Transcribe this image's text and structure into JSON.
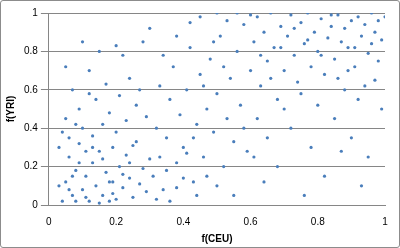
{
  "chart_data": {
    "type": "scatter",
    "xlabel": "f(CEU)",
    "ylabel": "f(YRI)",
    "color": "#4a7ebb",
    "marker": "circle",
    "grid": true,
    "xlim": [
      0,
      1
    ],
    "xticks": [
      0,
      0.2,
      0.4,
      0.6,
      0.8,
      1
    ],
    "ylim": [
      0,
      1
    ],
    "yticks": [
      0,
      0.2,
      0.4,
      0.6,
      0.8,
      1
    ],
    "x": [
      0.04,
      0.05,
      0.06,
      0.07,
      0.08,
      0.09,
      0.1,
      0.11,
      0.12,
      0.13,
      0.14,
      0.15,
      0.16,
      0.17,
      0.18,
      0.19,
      0.2,
      0.21,
      0.22,
      0.23,
      0.24,
      0.25,
      0.26,
      0.27,
      0.28,
      0.29,
      0.3,
      0.04,
      0.05,
      0.06,
      0.07,
      0.08,
      0.09,
      0.1,
      0.11,
      0.12,
      0.13,
      0.14,
      0.15,
      0.16,
      0.17,
      0.18,
      0.19,
      0.2,
      0.21,
      0.22,
      0.23,
      0.24,
      0.25,
      0.26,
      0.31,
      0.32,
      0.33,
      0.34,
      0.35,
      0.36,
      0.37,
      0.38,
      0.39,
      0.4,
      0.41,
      0.42,
      0.43,
      0.44,
      0.45,
      0.46,
      0.47,
      0.48,
      0.49,
      0.5,
      0.51,
      0.52,
      0.53,
      0.54,
      0.55,
      0.56,
      0.57,
      0.58,
      0.59,
      0.6,
      0.32,
      0.35,
      0.38,
      0.41,
      0.44,
      0.47,
      0.5,
      0.28,
      0.3,
      0.34,
      0.61,
      0.62,
      0.63,
      0.64,
      0.65,
      0.66,
      0.67,
      0.68,
      0.69,
      0.7,
      0.71,
      0.72,
      0.73,
      0.74,
      0.75,
      0.76,
      0.77,
      0.78,
      0.79,
      0.8,
      0.81,
      0.82,
      0.83,
      0.84,
      0.85,
      0.86,
      0.87,
      0.88,
      0.89,
      0.9,
      0.91,
      0.92,
      0.93,
      0.94,
      0.95,
      0.96,
      0.97,
      0.98,
      0.99,
      1,
      0.62,
      0.65,
      0.68,
      0.7,
      0.72,
      0.75,
      0.78,
      0.8,
      0.82,
      0.85,
      0.88,
      0.9,
      0.92,
      0.95,
      0.97,
      0.99,
      0.93,
      0.87,
      0.76,
      0.64,
      0.45,
      0.5,
      0.53,
      0.56,
      0.6,
      0.42,
      0.38,
      0.2,
      0.15,
      0.1,
      0.05,
      0.03,
      0.03,
      0.08,
      0.12,
      0.27,
      0.29,
      0.33,
      0.36,
      0.4,
      0.43,
      0.46,
      0.49,
      0.52,
      0.55,
      0.58,
      0.61,
      0.63,
      0.66,
      0.69,
      0.73,
      0.77,
      0.81,
      0.84,
      0.86,
      0.89,
      0.91,
      0.94,
      0.96,
      0.98,
      0.07,
      0.09,
      0.11,
      0.13,
      0.16,
      0.18,
      0.22,
      0.24,
      0.06,
      0.19
    ],
    "values": [
      0.02,
      0.12,
      0.25,
      0.05,
      0.18,
      0.32,
      0.08,
      0.15,
      0.02,
      0.22,
      0.1,
      0.28,
      0.05,
      0.17,
      0.12,
      0.3,
      0.03,
      0.2,
      0.09,
      0.26,
      0.14,
      0.04,
      0.33,
      0.11,
      0.19,
      0.07,
      0.24,
      0.38,
      0.45,
      0.08,
      0.6,
      0.02,
      0.5,
      0.4,
      0.28,
      0.7,
      0.36,
      0.55,
      0.01,
      0.42,
      0.63,
      0.48,
      0.06,
      0.38,
      0.57,
      0.78,
      0.44,
      0.66,
      0.31,
      0.52,
      0.15,
      0.4,
      0.62,
      0.08,
      0.35,
      0.55,
      0.72,
      0.22,
      0.47,
      0.3,
      0.6,
      0.82,
      0.12,
      0.42,
      0.68,
      0.25,
      0.5,
      0.76,
      0.38,
      0.58,
      0.88,
      0.2,
      0.45,
      0.66,
      0.33,
      0.8,
      0.52,
      0.94,
      0.28,
      0.7,
      0.03,
      0.18,
      0.09,
      0.27,
      0.05,
      0.15,
      0.1,
      0.85,
      0.92,
      0.78,
      0.85,
      0.98,
      0.62,
      0.9,
      0.75,
      1,
      0.82,
      0.55,
      0.93,
      0.7,
      0.88,
      0.99,
      0.78,
      0.64,
      0.95,
      0.84,
      1,
      0.72,
      0.9,
      0.8,
      0.97,
      0.68,
      0.87,
      0.93,
      0.76,
      0.99,
      0.85,
      0.92,
      0.7,
      0.96,
      0.82,
      0.98,
      0.88,
      0.94,
      0.79,
      1,
      0.9,
      0.96,
      0.86,
      0.98,
      0.45,
      0.35,
      0.2,
      0.5,
      0.4,
      0.58,
      0.3,
      0.52,
      0.15,
      0.45,
      0.6,
      0.35,
      0.55,
      0.25,
      0.65,
      0.5,
      0.1,
      0.28,
      0.05,
      0.12,
      0.98,
      1,
      0.96,
      1,
      0.99,
      0.95,
      0.88,
      0.83,
      0.8,
      0.85,
      0.72,
      0.3,
      0.1,
      0.42,
      0.58,
      0.6,
      0.46,
      0.25,
      0.02,
      0.14,
      0.35,
      0.62,
      0.85,
      0.72,
      0.05,
      0.4,
      0.25,
      0.78,
      0.66,
      0.82,
      0.92,
      0.86,
      0.78,
      0.99,
      0.66,
      0.82,
      0.72,
      0.62,
      0.84,
      0.75,
      0.15,
      0.22,
      0.04,
      0.3,
      0.24,
      0.02,
      0.16,
      0.22,
      0.35,
      0.12
    ]
  }
}
